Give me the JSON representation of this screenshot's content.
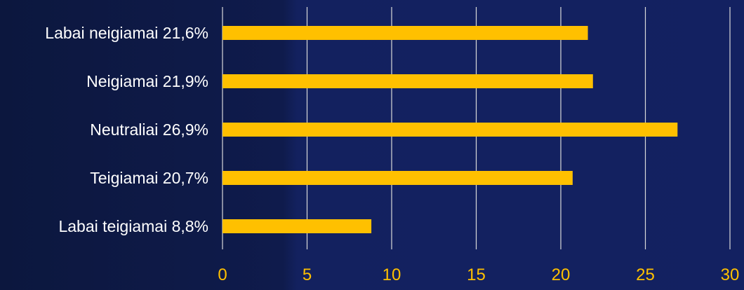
{
  "chart_data": {
    "type": "bar",
    "orientation": "horizontal",
    "title": "",
    "xlabel": "",
    "ylabel": "",
    "categories": [
      "Labai neigiamai 21,6%",
      "Neigiamai 21,9%",
      "Neutraliai 26,9%",
      "Teigiamai 20,7%",
      "Labai teigiamai 8,8%"
    ],
    "values": [
      21.6,
      21.9,
      26.9,
      20.7,
      8.8
    ],
    "xlim": [
      0,
      30
    ],
    "xticks": [
      0,
      5,
      10,
      15,
      20,
      25,
      30
    ],
    "xtick_labels": [
      "0",
      "5",
      "10",
      "15",
      "20",
      "25",
      "30"
    ],
    "grid": "vertical",
    "legend": "none"
  },
  "colors": {
    "bar": "#FFC000",
    "tick_label": "#FFC000",
    "category_label": "#FFFFFF",
    "gridline": "#D9D9D9",
    "background_left": "#0E1A44",
    "background_right": "#12205E"
  }
}
